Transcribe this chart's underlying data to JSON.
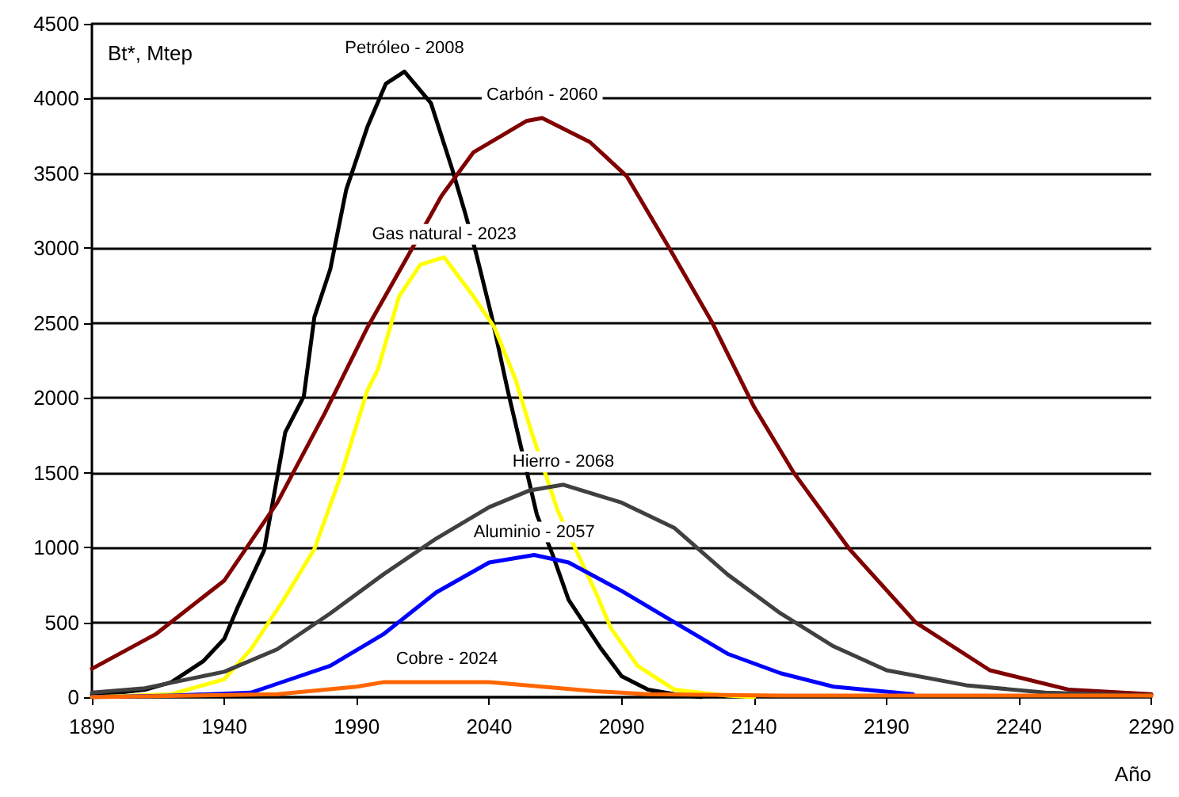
{
  "chart_data": {
    "type": "line",
    "ylabel": "Bt*, Mtep",
    "xlabel": "Año",
    "xlim": [
      1890,
      2290
    ],
    "xticks": [
      1890,
      1940,
      1990,
      2040,
      2090,
      2140,
      2190,
      2240,
      2290
    ],
    "ylim": [
      0,
      4500
    ],
    "yticks": [
      0,
      500,
      1000,
      1500,
      2000,
      2500,
      3000,
      3500,
      4000,
      4500
    ],
    "grid": "y",
    "marker": "none",
    "line_style": "solid",
    "series": [
      {
        "color": "#000000",
        "x": [
          1890,
          1900,
          1910,
          1920,
          1932,
          1940,
          1945,
          1955,
          1963,
          1970,
          1974,
          1980,
          1986,
          1994,
          2001,
          2008,
          2018,
          2026,
          2031,
          2035,
          2041,
          2047,
          2058,
          2064,
          2070,
          2082,
          2090,
          2100,
          2110,
          2120
        ],
        "values": [
          20,
          30,
          50,
          100,
          240,
          390,
          600,
          980,
          1770,
          2010,
          2540,
          2860,
          3390,
          3810,
          4100,
          4180,
          3970,
          3530,
          3230,
          2970,
          2540,
          2050,
          1220,
          950,
          650,
          330,
          140,
          50,
          20,
          0
        ]
      },
      {
        "color": "#800000",
        "x": [
          1890,
          1914,
          1940,
          1960,
          1978,
          1994,
          2010,
          2022,
          2034,
          2054,
          2060,
          2078,
          2092,
          2108,
          2124,
          2140,
          2155,
          2176,
          2201,
          2229,
          2259,
          2290
        ],
        "values": [
          190,
          420,
          780,
          1300,
          1900,
          2470,
          2970,
          3350,
          3640,
          3850,
          3870,
          3710,
          3480,
          3000,
          2510,
          1940,
          1500,
          990,
          500,
          180,
          50,
          20
        ]
      },
      {
        "color": "#ffff00",
        "x": [
          1890,
          1920,
          1940,
          1950,
          1962,
          1974,
          1984,
          1994,
          1998,
          2006,
          2014,
          2023,
          2034,
          2042,
          2050,
          2056,
          2066,
          2080,
          2086,
          2096,
          2110,
          2130,
          2140
        ],
        "values": [
          0,
          20,
          120,
          320,
          640,
          990,
          1480,
          2050,
          2190,
          2680,
          2890,
          2940,
          2680,
          2470,
          2120,
          1770,
          1240,
          710,
          460,
          210,
          50,
          10,
          0
        ]
      },
      {
        "color": "#404040",
        "x": [
          1890,
          1910,
          1940,
          1960,
          1980,
          2000,
          2020,
          2040,
          2055,
          2068,
          2090,
          2110,
          2130,
          2150,
          2170,
          2190,
          2220,
          2250,
          2290
        ],
        "values": [
          30,
          60,
          170,
          320,
          560,
          820,
          1060,
          1270,
          1380,
          1420,
          1300,
          1130,
          820,
          560,
          340,
          180,
          80,
          30,
          10
        ]
      },
      {
        "color": "#0000ff",
        "x": [
          1890,
          1920,
          1950,
          1960,
          1980,
          2000,
          2020,
          2040,
          2057,
          2070,
          2090,
          2110,
          2130,
          2150,
          2170,
          2200
        ],
        "values": [
          0,
          10,
          30,
          90,
          210,
          420,
          700,
          900,
          950,
          900,
          710,
          500,
          290,
          160,
          70,
          20
        ]
      },
      {
        "color": "#ff6600",
        "x": [
          1890,
          1960,
          1990,
          2000,
          2024,
          2040,
          2060,
          2080,
          2100,
          2150,
          2290
        ],
        "values": [
          0,
          20,
          70,
          100,
          100,
          100,
          70,
          40,
          20,
          10,
          10
        ]
      }
    ],
    "annotations": [
      {
        "text": "Petróleo - 2008",
        "x": 2008,
        "y": 4180
      },
      {
        "text": "Carbón - 2060",
        "x": 2060,
        "y": 3870
      },
      {
        "text": "Gas natural - 2023",
        "x": 2023,
        "y": 2940
      },
      {
        "text": "Hierro - 2068",
        "x": 2068,
        "y": 1420
      },
      {
        "text": "Aluminio - 2057",
        "x": 2057,
        "y": 950
      },
      {
        "text": "Cobre - 2024",
        "x": 2024,
        "y": 100
      }
    ]
  }
}
